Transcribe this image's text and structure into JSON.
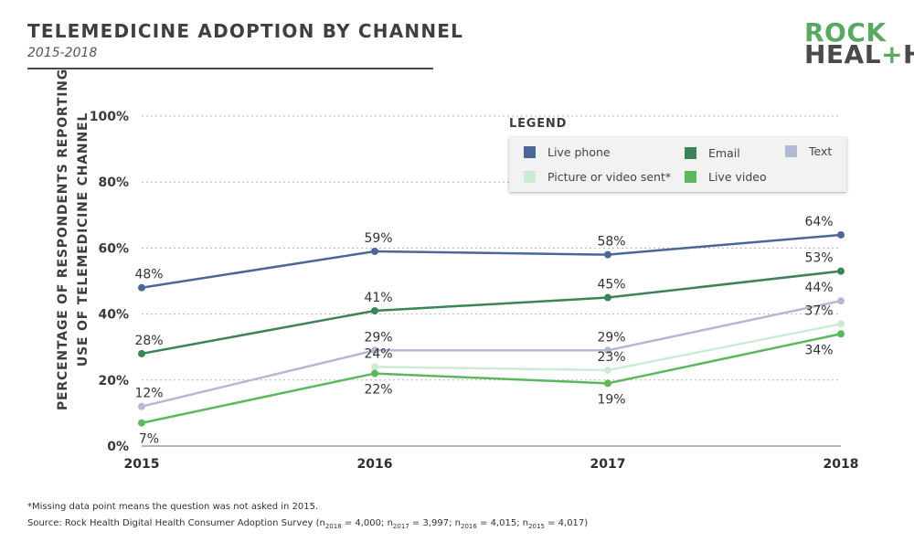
{
  "header": {
    "title": "TELEMEDICINE ADOPTION BY CHANNEL",
    "subtitle": "2015-2018"
  },
  "logo": {
    "line1": "ROCK",
    "line2a": "HEAL",
    "line2b": "+",
    "line2c": "H"
  },
  "footnote": "*Missing data point means the question was not asked in 2015.",
  "source": {
    "prefix": "Source: Rock Health Digital Health Consumer Adoption Survey (",
    "n": "n",
    "y2018": "2018",
    "v2018": " = 4,000; ",
    "y2017": "2017",
    "v2017": " = 3,997; ",
    "y2016": "2016",
    "v2016": " = 4,015; ",
    "y2015": "2015",
    "v2015": " = 4,017)"
  },
  "chart_data": {
    "type": "line",
    "title": "TELEMEDICINE ADOPTION BY CHANNEL",
    "subtitle": "2015-2018",
    "xlabel": "",
    "ylabel": "PERCENTAGE OF RESPONDENTS REPORTING USE OF TELEMEDICINE CHANNEL",
    "ylabel_lines": [
      "PERCENTAGE OF RESPONDENTS REPORTING",
      "USE OF TELEMEDICINE CHANNEL"
    ],
    "categories": [
      "2015",
      "2016",
      "2017",
      "2018"
    ],
    "yticks": [
      0,
      20,
      40,
      60,
      80,
      100
    ],
    "ytick_labels": [
      "0%",
      "20%",
      "40%",
      "60%",
      "80%",
      "100%"
    ],
    "ylim": [
      0,
      100
    ],
    "grid": true,
    "legend_title": "LEGEND",
    "legend_position": "top-right",
    "series": [
      {
        "name": "Live phone",
        "color": "#4b6799",
        "values": [
          48,
          59,
          58,
          64
        ],
        "labels": [
          "48%",
          "59%",
          "58%",
          "64%"
        ],
        "label_pos": [
          "above",
          "above",
          "above",
          "above"
        ]
      },
      {
        "name": "Email",
        "color": "#3c8358",
        "values": [
          28,
          41,
          45,
          53
        ],
        "labels": [
          "28%",
          "41%",
          "45%",
          "53%"
        ],
        "label_pos": [
          "above",
          "above",
          "above",
          "above"
        ]
      },
      {
        "name": "Text",
        "color": "#b3b9d2",
        "values": [
          12,
          29,
          29,
          44
        ],
        "labels": [
          "12%",
          "29%",
          "29%",
          "44%"
        ],
        "label_pos": [
          "above",
          "above",
          "above",
          "above"
        ]
      },
      {
        "name": "Picture or video sent*",
        "color": "#cbecd3",
        "values": [
          null,
          24,
          23,
          37
        ],
        "labels": [
          "",
          "24%",
          "23%",
          "37%"
        ],
        "label_pos": [
          "above",
          "above",
          "above",
          "above"
        ]
      },
      {
        "name": "Live video",
        "color": "#5cb85c",
        "values": [
          7,
          22,
          19,
          34
        ],
        "labels": [
          "7%",
          "22%",
          "19%",
          "34%"
        ],
        "label_pos": [
          "below",
          "below",
          "below",
          "below"
        ]
      }
    ]
  }
}
